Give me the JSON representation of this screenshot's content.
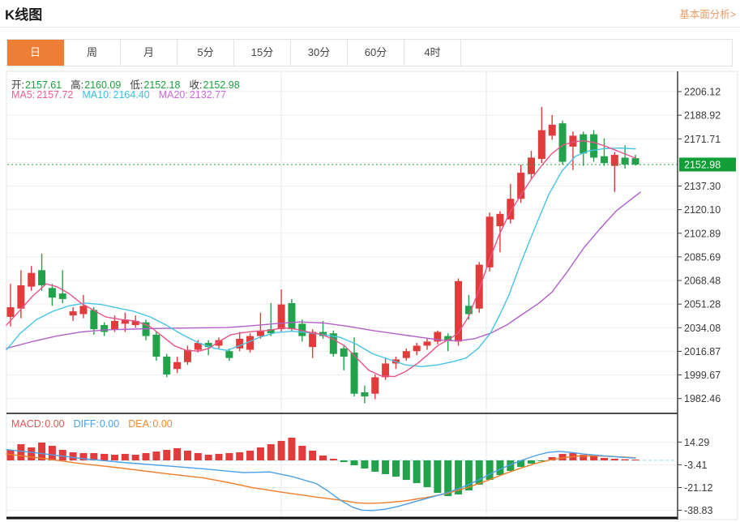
{
  "page": {
    "title": "K线图",
    "link_label": "基本面分析>"
  },
  "tabs": {
    "active_index": 0,
    "items": [
      {
        "label": "日",
        "name": "tab-day"
      },
      {
        "label": "周",
        "name": "tab-week"
      },
      {
        "label": "月",
        "name": "tab-month"
      },
      {
        "label": "5分",
        "name": "tab-5min"
      },
      {
        "label": "15分",
        "name": "tab-15min"
      },
      {
        "label": "30分",
        "name": "tab-30min"
      },
      {
        "label": "60分",
        "name": "tab-60min"
      },
      {
        "label": "4时",
        "name": "tab-4hour"
      }
    ]
  },
  "legend": {
    "ohlc": {
      "open_label": "开:",
      "open": "2157.61",
      "high_label": "高:",
      "high": "2160.09",
      "low_label": "低:",
      "low": "2152.18",
      "close_label": "收:",
      "close": "2152.98"
    },
    "ma": {
      "ma5_label": "MA5:",
      "ma5": "2157.72",
      "ma10_label": "MA10:",
      "ma10": "2164.40",
      "ma20_label": "MA20:",
      "ma20": "2132.77"
    },
    "macd": {
      "macd_label": "MACD:",
      "macd": "0.00",
      "diff_label": "DIFF:",
      "diff": "0.00",
      "dea_label": "DEA:",
      "dea": "0.00"
    }
  },
  "colors": {
    "up": "#e23b3b",
    "down": "#22a24b",
    "ma5_line": "#e8538a",
    "ma10_line": "#45c4e6",
    "ma20_line": "#b35fc9",
    "diff_line": "#4ba0e8",
    "dea_line": "#f07c28",
    "price_flag_bg": "#129e36",
    "dotted_price_line": "#18a038",
    "grid": "#efefef",
    "vgrid": "#e4eaf0",
    "axis_line": "#3c3c3c",
    "axis_text": "#3a3a3a",
    "zero_dash": "#9fd0f0",
    "tab_active_bg": "#ee7e35"
  },
  "chart_data": [
    {
      "type": "candlestick",
      "title": "K线图",
      "legend_position": "top-left-inside",
      "grid": true,
      "price_axis_ticks": [
        "2206.12",
        "2188.92",
        "2171.71",
        "2137.30",
        "2120.10",
        "2102.89",
        "2085.69",
        "2068.48",
        "2051.28",
        "2034.08",
        "2016.87",
        "1999.67",
        "1982.46"
      ],
      "hidden_tick": "2154.51",
      "axis_range": [
        1982.46,
        2206.12
      ],
      "current_price": "2152.98",
      "candles_ohlc": [
        [
          2042,
          2066,
          2035,
          2049
        ],
        [
          2048,
          2076,
          2041,
          2065
        ],
        [
          2064,
          2079,
          2061,
          2074
        ],
        [
          2076,
          2088,
          2061,
          2065
        ],
        [
          2063,
          2066,
          2050,
          2056
        ],
        [
          2059,
          2076,
          2052,
          2055
        ],
        [
          2043,
          2049,
          2039,
          2046
        ],
        [
          2044,
          2058,
          2041,
          2050
        ],
        [
          2047,
          2049,
          2029,
          2033
        ],
        [
          2036,
          2038,
          2028,
          2031
        ],
        [
          2033,
          2043,
          2031,
          2039
        ],
        [
          2037,
          2045,
          2031,
          2040
        ],
        [
          2036,
          2043,
          2034,
          2039
        ],
        [
          2038,
          2040,
          2025,
          2028
        ],
        [
          2029,
          2031,
          2010,
          2013
        ],
        [
          2013,
          2015,
          1998,
          2000
        ],
        [
          2004,
          2013,
          2001,
          2009
        ],
        [
          2009,
          2021,
          2007,
          2018
        ],
        [
          2018,
          2025,
          2016,
          2023
        ],
        [
          2023,
          2025,
          2014,
          2020
        ],
        [
          2021,
          2027,
          2019,
          2025
        ],
        [
          2017,
          2019,
          2010,
          2012
        ],
        [
          2019,
          2031,
          2017,
          2026
        ],
        [
          2018,
          2030,
          2016,
          2028
        ],
        [
          2028,
          2045,
          2026,
          2032
        ],
        [
          2033,
          2052,
          2028,
          2030
        ],
        [
          2033,
          2062,
          2031,
          2051
        ],
        [
          2052,
          2055,
          2031,
          2033
        ],
        [
          2037,
          2040,
          2024,
          2028
        ],
        [
          2020,
          2033,
          2012,
          2031
        ],
        [
          2031,
          2039,
          2026,
          2028
        ],
        [
          2030,
          2032,
          2013,
          2015
        ],
        [
          2019,
          2021,
          2003,
          2013
        ],
        [
          2016,
          2027,
          1984,
          1986
        ],
        [
          1987,
          1992,
          1979,
          1984
        ],
        [
          1986,
          2000,
          1982,
          1998
        ],
        [
          1998,
          2012,
          1996,
          2008
        ],
        [
          2008,
          2013,
          2004,
          2011
        ],
        [
          2012,
          2019,
          2010,
          2017
        ],
        [
          2017,
          2023,
          2014,
          2021
        ],
        [
          2021,
          2026,
          2018,
          2024
        ],
        [
          2024,
          2032,
          2022,
          2031
        ],
        [
          2028,
          2030,
          2017,
          2025
        ],
        [
          2024,
          2070,
          2021,
          2068
        ],
        [
          2050,
          2058,
          2040,
          2044
        ],
        [
          2048,
          2082,
          2045,
          2080
        ],
        [
          2078,
          2118,
          2075,
          2115
        ],
        [
          2108,
          2119,
          2089,
          2117
        ],
        [
          2113,
          2139,
          2110,
          2128
        ],
        [
          2128,
          2153,
          2125,
          2147
        ],
        [
          2146,
          2163,
          2143,
          2158
        ],
        [
          2157,
          2195,
          2154,
          2178
        ],
        [
          2174,
          2189,
          2171,
          2182
        ],
        [
          2183,
          2185,
          2153,
          2155
        ],
        [
          2166,
          2177,
          2149,
          2174
        ],
        [
          2175,
          2177,
          2152,
          2161
        ],
        [
          2175,
          2178,
          2155,
          2158
        ],
        [
          2159,
          2172,
          2152,
          2154
        ],
        [
          2152,
          2162,
          2133,
          2160
        ],
        [
          2158,
          2167,
          2150,
          2153
        ],
        [
          2157.61,
          2160.09,
          2152.18,
          2152.98
        ]
      ],
      "ma5_points": [
        [
          8,
          2036
        ],
        [
          25,
          2047
        ],
        [
          40,
          2057
        ],
        [
          57,
          2066
        ],
        [
          70,
          2064
        ],
        [
          85,
          2059
        ],
        [
          100,
          2052
        ],
        [
          115,
          2047
        ],
        [
          130,
          2042
        ],
        [
          150,
          2040
        ],
        [
          167,
          2039
        ],
        [
          185,
          2035
        ],
        [
          200,
          2028
        ],
        [
          215,
          2021
        ],
        [
          230,
          2017.5
        ],
        [
          245,
          2017
        ],
        [
          258,
          2019
        ],
        [
          270,
          2024
        ],
        [
          285,
          2029
        ],
        [
          300,
          2030.5
        ],
        [
          315,
          2031.5
        ],
        [
          330,
          2032
        ],
        [
          350,
          2034
        ],
        [
          365,
          2033
        ],
        [
          380,
          2031
        ],
        [
          395,
          2029.5
        ],
        [
          410,
          2026
        ],
        [
          425,
          2021
        ],
        [
          440,
          2012
        ],
        [
          455,
          2003
        ],
        [
          470,
          1999
        ],
        [
          487,
          1998.5
        ],
        [
          500,
          2002
        ],
        [
          515,
          2008
        ],
        [
          527,
          2014
        ],
        [
          540,
          2021
        ],
        [
          555,
          2026
        ],
        [
          565,
          2030
        ],
        [
          578,
          2042
        ],
        [
          590,
          2060
        ],
        [
          603,
          2082
        ],
        [
          616,
          2102
        ],
        [
          629,
          2118
        ],
        [
          642,
          2130
        ],
        [
          655,
          2142
        ],
        [
          668,
          2152
        ],
        [
          681,
          2161
        ],
        [
          694,
          2167
        ],
        [
          707,
          2169.5
        ],
        [
          720,
          2170.3
        ],
        [
          733,
          2169
        ],
        [
          746,
          2166.5
        ],
        [
          759,
          2163.5
        ],
        [
          772,
          2160.5
        ],
        [
          784,
          2157.7
        ]
      ],
      "ma10_points": [
        [
          8,
          2018
        ],
        [
          25,
          2030
        ],
        [
          45,
          2040
        ],
        [
          65,
          2046
        ],
        [
          85,
          2050
        ],
        [
          105,
          2052
        ],
        [
          125,
          2051
        ],
        [
          145,
          2048.5
        ],
        [
          165,
          2046
        ],
        [
          185,
          2042
        ],
        [
          205,
          2036
        ],
        [
          225,
          2029
        ],
        [
          245,
          2023
        ],
        [
          265,
          2019
        ],
        [
          280,
          2017.5
        ],
        [
          300,
          2022
        ],
        [
          320,
          2027
        ],
        [
          340,
          2030.5
        ],
        [
          360,
          2031.5
        ],
        [
          380,
          2030.5
        ],
        [
          400,
          2029
        ],
        [
          420,
          2027
        ],
        [
          440,
          2022
        ],
        [
          460,
          2015
        ],
        [
          480,
          2011
        ],
        [
          500,
          2007
        ],
        [
          520,
          2005.8
        ],
        [
          540,
          2007
        ],
        [
          560,
          2009.5
        ],
        [
          575,
          2012
        ],
        [
          590,
          2019
        ],
        [
          605,
          2030
        ],
        [
          617,
          2044
        ],
        [
          628,
          2058
        ],
        [
          643,
          2082
        ],
        [
          660,
          2107
        ],
        [
          677,
          2131
        ],
        [
          693,
          2148
        ],
        [
          710,
          2159
        ],
        [
          727,
          2163
        ],
        [
          745,
          2164.5
        ],
        [
          765,
          2165
        ],
        [
          784,
          2164.4
        ]
      ],
      "ma20_points": [
        [
          8,
          2019
        ],
        [
          40,
          2024
        ],
        [
          70,
          2028
        ],
        [
          100,
          2031
        ],
        [
          130,
          2032.5
        ],
        [
          160,
          2033
        ],
        [
          190,
          2033.5
        ],
        [
          220,
          2033.8
        ],
        [
          250,
          2034
        ],
        [
          280,
          2034.2
        ],
        [
          310,
          2035.5
        ],
        [
          340,
          2037
        ],
        [
          370,
          2038.3
        ],
        [
          400,
          2037.5
        ],
        [
          430,
          2035
        ],
        [
          460,
          2032
        ],
        [
          490,
          2029.5
        ],
        [
          520,
          2027
        ],
        [
          545,
          2025
        ],
        [
          565,
          2024.5
        ],
        [
          585,
          2026
        ],
        [
          605,
          2030
        ],
        [
          625,
          2036
        ],
        [
          645,
          2044
        ],
        [
          665,
          2052
        ],
        [
          681,
          2060
        ],
        [
          700,
          2075
        ],
        [
          720,
          2092
        ],
        [
          740,
          2106
        ],
        [
          760,
          2119
        ],
        [
          775,
          2126
        ],
        [
          790,
          2132.8
        ]
      ]
    },
    {
      "type": "macd",
      "axis_ticks": [
        "14.29",
        "-3.41",
        "-21.12",
        "-38.83"
      ],
      "histogram": [
        8.2,
        12.6,
        10.1,
        13.9,
        11.4,
        8.2,
        6.3,
        5.7,
        5.7,
        5.1,
        4.4,
        5.1,
        4.4,
        5.7,
        6.9,
        8.2,
        9.5,
        7.6,
        5.7,
        4.4,
        5.1,
        5.7,
        6.3,
        7.6,
        10.1,
        12.6,
        15.2,
        17.7,
        11.4,
        7.6,
        3.8,
        1.3,
        -1.3,
        -3.8,
        -6.3,
        -8.8,
        -10.7,
        -12.6,
        -15.2,
        -17.7,
        -20.8,
        -25.3,
        -27.8,
        -26.5,
        -23.4,
        -18.9,
        -15.2,
        -11.4,
        -8.2,
        -5.1,
        -2.5,
        -0.6,
        2.5,
        5.1,
        5.7,
        4.4,
        3.2,
        1.9,
        1.3,
        0.9,
        0.6
      ],
      "diff_points": [
        [
          8,
          8.5
        ],
        [
          50,
          5.5
        ],
        [
          100,
          1.5
        ],
        [
          150,
          -1.5
        ],
        [
          200,
          -4
        ],
        [
          250,
          -6.5
        ],
        [
          300,
          -9.5
        ],
        [
          333,
          -9
        ],
        [
          360,
          -12.5
        ],
        [
          390,
          -18
        ],
        [
          405,
          -24
        ],
        [
          420,
          -31
        ],
        [
          435,
          -36.5
        ],
        [
          447,
          -38.8
        ],
        [
          460,
          -39
        ],
        [
          475,
          -38
        ],
        [
          490,
          -36
        ],
        [
          510,
          -32.5
        ],
        [
          530,
          -29
        ],
        [
          550,
          -25.5
        ],
        [
          570,
          -21
        ],
        [
          590,
          -15.5
        ],
        [
          605,
          -10.5
        ],
        [
          620,
          -6
        ],
        [
          635,
          -2
        ],
        [
          650,
          1.5
        ],
        [
          665,
          4.5
        ],
        [
          677,
          6.3
        ],
        [
          690,
          7
        ],
        [
          705,
          6.2
        ],
        [
          720,
          5
        ],
        [
          740,
          3.8
        ],
        [
          760,
          2.8
        ],
        [
          784,
          1.8
        ]
      ],
      "dea_points": [
        [
          8,
          5
        ],
        [
          60,
          1
        ],
        [
          100,
          -2.5
        ],
        [
          150,
          -6
        ],
        [
          200,
          -10
        ],
        [
          250,
          -13.5
        ],
        [
          280,
          -17
        ],
        [
          310,
          -21
        ],
        [
          350,
          -25
        ],
        [
          390,
          -28.5
        ],
        [
          420,
          -31
        ],
        [
          440,
          -33
        ],
        [
          455,
          -33.5
        ],
        [
          475,
          -33
        ],
        [
          500,
          -31.5
        ],
        [
          525,
          -29
        ],
        [
          550,
          -26
        ],
        [
          575,
          -21.5
        ],
        [
          600,
          -16
        ],
        [
          620,
          -11
        ],
        [
          640,
          -6.5
        ],
        [
          660,
          -2.5
        ],
        [
          680,
          0.5
        ],
        [
          700,
          2.5
        ],
        [
          715,
          3.4
        ],
        [
          730,
          3.6
        ],
        [
          750,
          3.2
        ],
        [
          770,
          2.6
        ],
        [
          784,
          2
        ]
      ]
    }
  ]
}
